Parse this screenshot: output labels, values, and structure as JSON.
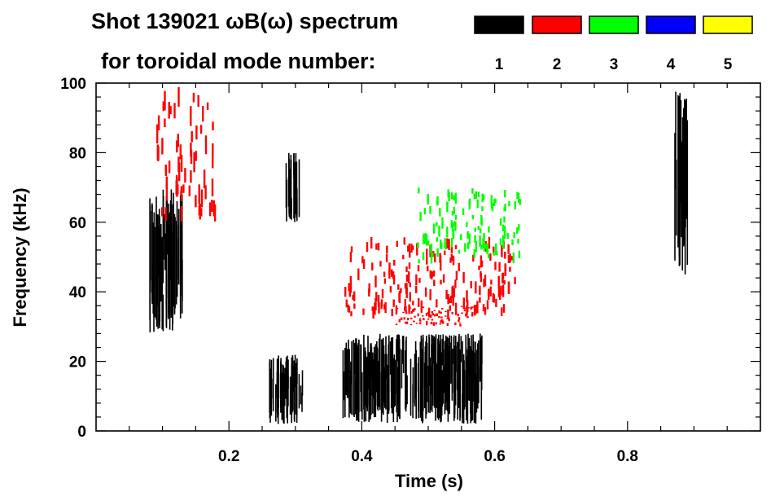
{
  "chart_data": {
    "type": "spectrogram",
    "title_line1": "Shot 139021 ωB(ω) spectrum",
    "title_line2": "for toroidal mode number:",
    "xlabel": "Time (s)",
    "ylabel": "Frequency (kHz)",
    "xlim": [
      0.0,
      1.0
    ],
    "ylim": [
      0,
      100
    ],
    "xticks": [
      0.2,
      0.4,
      0.6,
      0.8
    ],
    "xtick_labels": [
      "0.2",
      "0.4",
      "0.6",
      "0.8"
    ],
    "yticks": [
      0,
      20,
      40,
      60,
      80,
      100
    ],
    "ytick_labels": [
      "0",
      "20",
      "40",
      "60",
      "80",
      "100"
    ],
    "legend": [
      {
        "mode": "1",
        "color": "#000000"
      },
      {
        "mode": "2",
        "color": "#ff0000"
      },
      {
        "mode": "3",
        "color": "#00ff00"
      },
      {
        "mode": "4",
        "color": "#0000ff"
      },
      {
        "mode": "5",
        "color": "#ffff00"
      }
    ],
    "regions": [
      {
        "mode": "1",
        "t0": 0.08,
        "t1": 0.13,
        "f0": 28,
        "f1": 70,
        "desc": "n=1 mode cluster near 50 kHz"
      },
      {
        "mode": "1",
        "t0": 0.26,
        "t1": 0.31,
        "f0": 2,
        "f1": 22,
        "desc": "n=1 low-frequency burst"
      },
      {
        "mode": "1",
        "t0": 0.37,
        "t1": 0.58,
        "f0": 2,
        "f1": 28,
        "desc": "n=1 broadband activity 10-25 kHz"
      },
      {
        "mode": "1",
        "t0": 0.285,
        "t1": 0.305,
        "f0": 60,
        "f1": 80,
        "desc": "n=1 patch 65-80 kHz"
      },
      {
        "mode": "1",
        "t0": 0.87,
        "t1": 0.89,
        "f0": 45,
        "f1": 98,
        "desc": "n=1 vertical streak"
      },
      {
        "mode": "2",
        "t0": 0.09,
        "t1": 0.18,
        "f0": 60,
        "f1": 99,
        "desc": "n=2 chirping mode"
      },
      {
        "mode": "2",
        "t0": 0.37,
        "t1": 0.63,
        "f0": 32,
        "f1": 56,
        "desc": "n=2 mode rising to 42 kHz"
      },
      {
        "mode": "2",
        "t0": 0.45,
        "t1": 0.57,
        "f0": 30,
        "f1": 36,
        "desc": "n=2 lower branch ~33 kHz"
      },
      {
        "mode": "3",
        "t0": 0.48,
        "t1": 0.64,
        "f0": 48,
        "f1": 70,
        "desc": "n=3 modes 55-68 kHz"
      }
    ]
  }
}
